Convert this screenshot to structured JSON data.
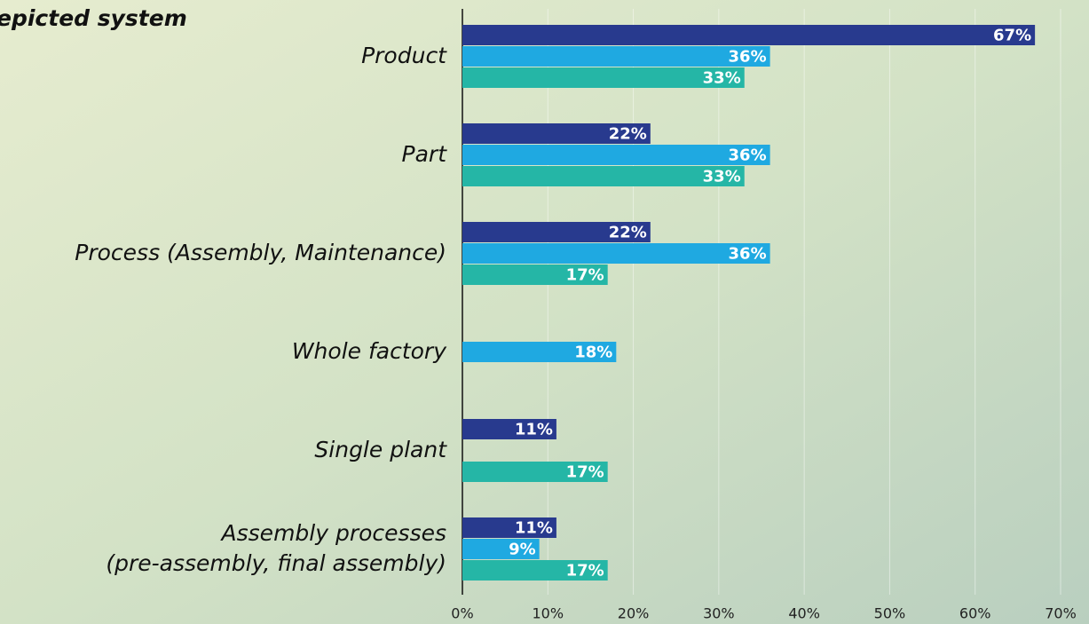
{
  "chart_data": {
    "type": "bar",
    "orientation": "horizontal",
    "title": "epicted system",
    "categories": [
      [
        "Product"
      ],
      [
        "Part"
      ],
      [
        "Process (Assembly, Maintenance)"
      ],
      [
        "Whole factory"
      ],
      [
        "Single plant"
      ],
      [
        "Assembly processes",
        "(pre-assembly, final assembly)"
      ]
    ],
    "series": [
      {
        "color": "#283a8e",
        "values": [
          67,
          22,
          22,
          null,
          11,
          11
        ],
        "value_labels": [
          "67%",
          "22%",
          "22%",
          null,
          "11%",
          "11%"
        ]
      },
      {
        "color": "#1fa9e1",
        "values": [
          36,
          36,
          36,
          18,
          null,
          9
        ],
        "value_labels": [
          "36%",
          "36%",
          "36%",
          "18%",
          null,
          "9%"
        ]
      },
      {
        "color": "#25b6a6",
        "values": [
          33,
          33,
          17,
          null,
          17,
          17
        ],
        "value_labels": [
          "33%",
          "33%",
          "17%",
          null,
          "17%",
          "17%"
        ]
      }
    ],
    "xlim": [
      0,
      70
    ],
    "xticks": [
      {
        "value": 0,
        "label": "0%"
      },
      {
        "value": 10,
        "label": "10%"
      },
      {
        "value": 20,
        "label": "20%"
      },
      {
        "value": 30,
        "label": "30%"
      },
      {
        "value": 40,
        "label": "40%"
      },
      {
        "value": 50,
        "label": "50%"
      },
      {
        "value": 60,
        "label": "60%"
      },
      {
        "value": 70,
        "label": "70%"
      }
    ],
    "grid": true
  }
}
